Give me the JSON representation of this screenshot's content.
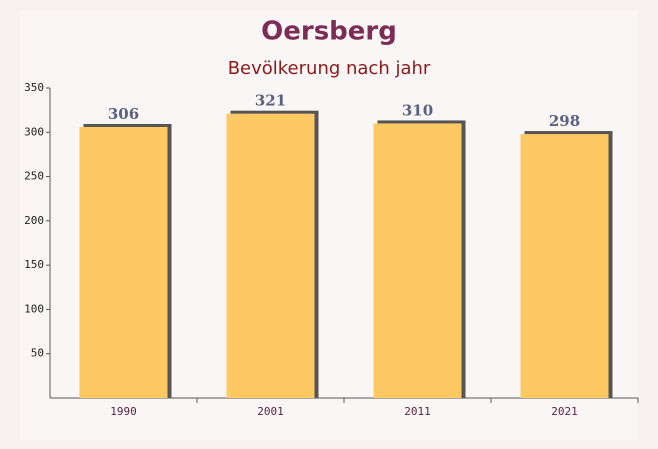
{
  "chart_data": {
    "type": "bar",
    "title": "Oersberg",
    "subtitle": "Bevölkerung nach jahr",
    "categories": [
      "1990",
      "2001",
      "2011",
      "2021"
    ],
    "values": [
      306,
      321,
      310,
      298
    ],
    "color": "#fec862",
    "ylim": [
      0,
      350
    ],
    "yticks": [
      50,
      100,
      150,
      200,
      250,
      300,
      350
    ]
  }
}
